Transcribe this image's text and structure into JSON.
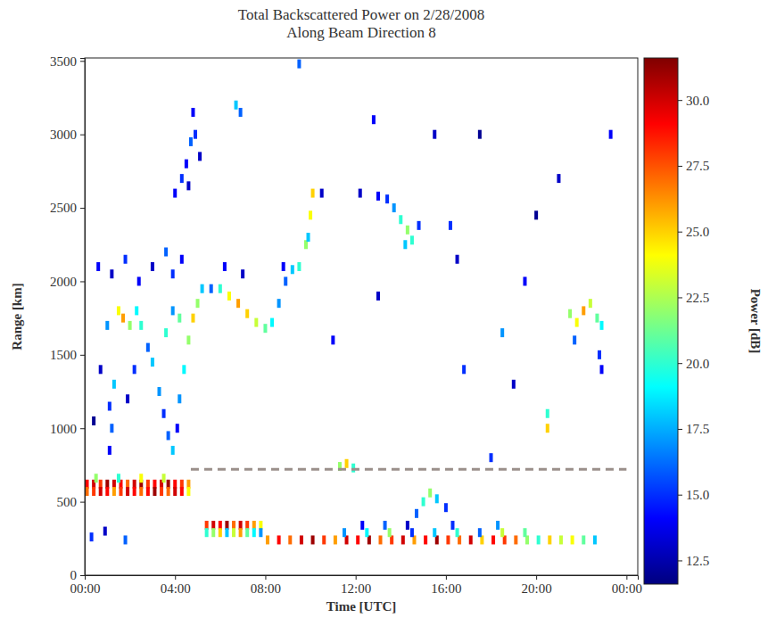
{
  "chart_data": {
    "type": "scatter",
    "marker": "square",
    "title": "Total Backscattered Power on 2/28/2008",
    "subtitle": "Along Beam Direction 8",
    "x_label": "Time [UTC]",
    "y_label": "Range [km]",
    "xlim": [
      0,
      24.5
    ],
    "xticks": [
      {
        "value": 0,
        "label": "00:00"
      },
      {
        "value": 4,
        "label": "04:00"
      },
      {
        "value": 8,
        "label": "08:00"
      },
      {
        "value": 12,
        "label": "12:00"
      },
      {
        "value": 16,
        "label": "16:00"
      },
      {
        "value": 20,
        "label": "20:00"
      },
      {
        "value": 24,
        "label": "00:00"
      }
    ],
    "ylim": [
      0,
      3520
    ],
    "yticks": [
      0,
      500,
      1000,
      1500,
      2000,
      2500,
      3000,
      3500
    ],
    "colorbar": {
      "label": "Power [dB]",
      "range": [
        11.6,
        31.6
      ],
      "ticks": [
        12.5,
        {
          "value": 15,
          "label": "15.0"
        },
        17.5,
        {
          "value": 20,
          "label": "20.0"
        },
        22.5,
        {
          "value": 25,
          "label": "25.0"
        },
        27.5,
        {
          "value": 30,
          "label": "30.0"
        }
      ]
    },
    "reference_line": {
      "y": 720,
      "x": [
        4.7,
        24
      ]
    },
    "x": [
      0.1,
      0.4,
      0.7,
      1.0,
      1.3,
      1.6,
      1.9,
      2.2,
      2.5,
      2.8,
      3.1,
      3.4,
      3.7,
      4.0,
      4.3,
      4.6,
      0.1,
      0.4,
      0.7,
      1.0,
      1.3,
      1.6,
      1.9,
      2.2,
      2.5,
      2.8,
      3.1,
      3.4,
      3.7,
      4.0,
      4.3,
      4.6,
      0.5,
      1.5,
      2.5,
      3.5,
      0.3,
      0.9,
      1.8,
      5.4,
      5.7,
      6.0,
      6.3,
      6.6,
      6.9,
      7.2,
      7.5,
      7.8,
      5.4,
      5.7,
      6.0,
      6.3,
      6.6,
      6.9,
      7.2,
      7.5,
      7.8,
      8.1,
      8.6,
      9.1,
      9.6,
      10.1,
      10.6,
      11.1,
      11.6,
      12.1,
      12.6,
      13.1,
      13.6,
      14.1,
      14.6,
      15.1,
      15.6,
      16.1,
      16.6,
      17.1,
      17.6,
      18.1,
      18.6,
      19.1,
      19.6,
      20.1,
      20.6,
      21.1,
      21.6,
      22.1,
      22.6,
      11.5,
      12.5,
      13.5,
      14.5,
      15.5,
      16.5,
      17.5,
      18.5,
      19.5,
      12.3,
      13.3,
      14.3,
      16.3,
      18.3,
      14.7,
      15.0,
      15.3,
      15.6,
      16.0,
      11.3,
      11.6,
      11.9,
      1.1,
      1.2,
      1.1,
      1.3,
      1.0,
      1.5,
      1.7,
      2.0,
      2.3,
      2.5,
      3.0,
      3.3,
      3.5,
      3.7,
      3.9,
      4.1,
      4.2,
      4.4,
      4.6,
      4.8,
      5.0,
      5.2,
      0.6,
      1.2,
      1.8,
      2.4,
      3.0,
      3.6,
      3.9,
      4.3,
      2.8,
      2.2,
      1.9,
      3.6,
      3.9,
      4.2,
      0.7,
      0.4,
      4.3,
      4.5,
      4.7,
      4.9,
      4.6,
      4.0,
      5.1,
      4.8,
      6.7,
      6.9,
      5.6,
      6.0,
      6.4,
      6.8,
      7.2,
      7.6,
      8.0,
      8.3,
      8.6,
      8.9,
      9.2,
      9.5,
      9.8,
      10.0,
      10.1,
      9.9,
      6.2,
      7.0,
      8.8,
      13.0,
      13.4,
      13.7,
      14.0,
      14.3,
      14.5,
      14.8,
      14.2,
      12.2,
      16.2,
      21.5,
      21.8,
      22.1,
      22.4,
      22.7,
      22.9,
      22.8,
      22.9,
      21.7,
      18.5,
      19.5,
      20.5,
      20.5,
      16.5,
      17.5,
      19.0,
      12.8,
      15.5,
      11.0,
      10.5,
      20.0,
      23.3,
      21.0,
      18.0,
      9.5,
      13.0,
      16.8
    ],
    "y": [
      620,
      620,
      620,
      620,
      620,
      620,
      620,
      620,
      620,
      620,
      620,
      620,
      620,
      620,
      620,
      620,
      570,
      570,
      570,
      570,
      570,
      570,
      570,
      570,
      570,
      570,
      570,
      570,
      570,
      570,
      570,
      570,
      660,
      660,
      660,
      660,
      260,
      300,
      240,
      340,
      340,
      340,
      340,
      340,
      340,
      340,
      340,
      340,
      290,
      290,
      290,
      290,
      290,
      290,
      290,
      290,
      290,
      240,
      240,
      240,
      240,
      240,
      240,
      240,
      240,
      240,
      240,
      240,
      240,
      240,
      240,
      240,
      240,
      240,
      240,
      240,
      240,
      240,
      240,
      240,
      240,
      240,
      240,
      240,
      240,
      240,
      240,
      290,
      290,
      290,
      290,
      290,
      290,
      290,
      290,
      290,
      340,
      340,
      340,
      340,
      340,
      420,
      500,
      560,
      520,
      460,
      740,
      760,
      730,
      850,
      1000,
      1150,
      1300,
      1700,
      1800,
      1750,
      1700,
      1800,
      1700,
      1450,
      1250,
      1100,
      950,
      850,
      1000,
      1200,
      1400,
      1600,
      1750,
      1850,
      1950,
      2100,
      2050,
      2150,
      2000,
      2100,
      2200,
      2050,
      2150,
      1550,
      1400,
      1200,
      1650,
      1800,
      1750,
      1400,
      1050,
      2700,
      2800,
      2950,
      3000,
      2650,
      2600,
      2850,
      3150,
      3200,
      3150,
      1950,
      1950,
      1900,
      1850,
      1780,
      1720,
      1680,
      1720,
      1850,
      2000,
      2080,
      2100,
      2250,
      2450,
      2600,
      2300,
      2100,
      2050,
      2100,
      2580,
      2560,
      2500,
      2420,
      2350,
      2280,
      2380,
      2250,
      2600,
      2380,
      1780,
      1720,
      1800,
      1850,
      1750,
      1700,
      1500,
      1400,
      1600,
      1650,
      2000,
      1000,
      1100,
      2150,
      3000,
      1300,
      3100,
      3000,
      1600,
      2600,
      2450,
      3000,
      2700,
      800,
      3480,
      1900,
      1400
    ],
    "values": [
      29,
      30,
      28,
      31,
      30,
      29,
      27,
      30,
      31,
      28,
      29,
      30,
      31,
      29,
      28,
      26,
      27,
      28,
      30,
      29,
      26,
      28,
      30,
      29,
      27,
      29,
      31,
      28,
      27,
      30,
      29,
      24,
      22,
      20,
      24,
      23,
      15,
      13,
      16,
      28,
      30,
      29,
      31,
      27,
      30,
      28,
      26,
      24,
      20,
      22,
      25,
      18,
      23,
      26,
      21,
      19,
      17,
      26,
      29,
      27,
      30,
      31,
      28,
      26,
      30,
      29,
      31,
      27,
      28,
      30,
      26,
      29,
      31,
      28,
      27,
      30,
      25,
      29,
      28,
      27,
      22,
      20,
      25,
      23,
      24,
      21,
      18,
      17,
      19,
      22,
      15,
      18,
      20,
      16,
      23,
      21,
      14,
      16,
      13,
      15,
      17,
      16,
      20,
      22,
      18,
      15,
      22,
      25,
      20,
      14,
      16,
      15,
      18,
      17,
      24,
      26,
      22,
      19,
      20,
      18,
      17,
      15,
      16,
      18,
      14,
      17,
      19,
      22,
      25,
      22,
      18,
      14,
      13,
      15,
      14,
      13,
      16,
      15,
      14,
      16,
      15,
      13,
      20,
      17,
      21,
      13,
      12,
      15,
      14,
      16,
      15,
      13,
      14,
      13,
      14,
      18,
      16,
      16,
      20,
      24,
      26,
      25,
      23,
      21,
      19,
      17,
      16,
      18,
      20,
      22,
      24,
      25,
      18,
      14,
      13,
      14,
      14,
      15,
      17,
      20,
      22,
      20,
      15,
      18,
      13,
      15,
      22,
      24,
      26,
      23,
      21,
      19,
      15,
      14,
      16,
      17,
      14,
      25,
      20,
      13,
      12,
      13,
      14,
      13,
      14,
      13,
      12,
      14,
      13,
      15,
      16,
      13,
      15
    ]
  }
}
